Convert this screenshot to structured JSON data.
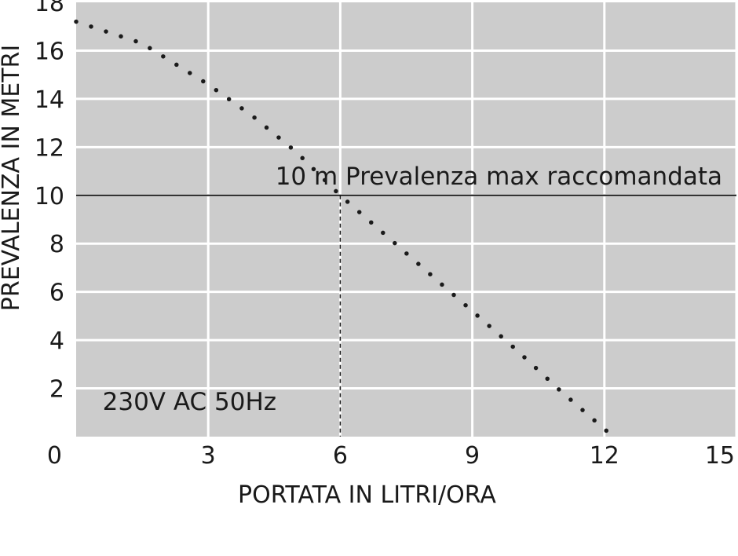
{
  "chart_data": {
    "type": "line",
    "xlabel": "PORTATA IN LITRI/ORA",
    "ylabel": "PREVALENZA IN METRI",
    "xlim": [
      0,
      15
    ],
    "ylim": [
      0,
      18
    ],
    "x_ticks": [
      0,
      3,
      6,
      9,
      12,
      15
    ],
    "y_ticks": [
      2,
      4,
      6,
      8,
      10,
      12,
      14,
      16,
      18
    ],
    "grid": true,
    "plot_background": "#cccccc",
    "grid_color": "#ffffff",
    "series": [
      {
        "style": "dotted",
        "color": "#1a1a1a",
        "x": [
          0,
          1.5,
          3,
          4,
          5,
          6,
          7,
          8,
          9,
          10,
          11,
          12.2
        ],
        "y": [
          17.2,
          16.3,
          14.6,
          13.3,
          11.8,
          10,
          8.4,
          6.8,
          5.2,
          3.6,
          1.9,
          0
        ]
      }
    ],
    "reference_line": {
      "y": 10,
      "label": "10 m Prevalenza max raccomandata",
      "color": "#1a1a1a"
    },
    "drop_line": {
      "x": 6,
      "y": 10
    },
    "annotations": [
      {
        "text": "230V AC 50Hz",
        "x": 0.6,
        "y": 1.1
      }
    ]
  }
}
